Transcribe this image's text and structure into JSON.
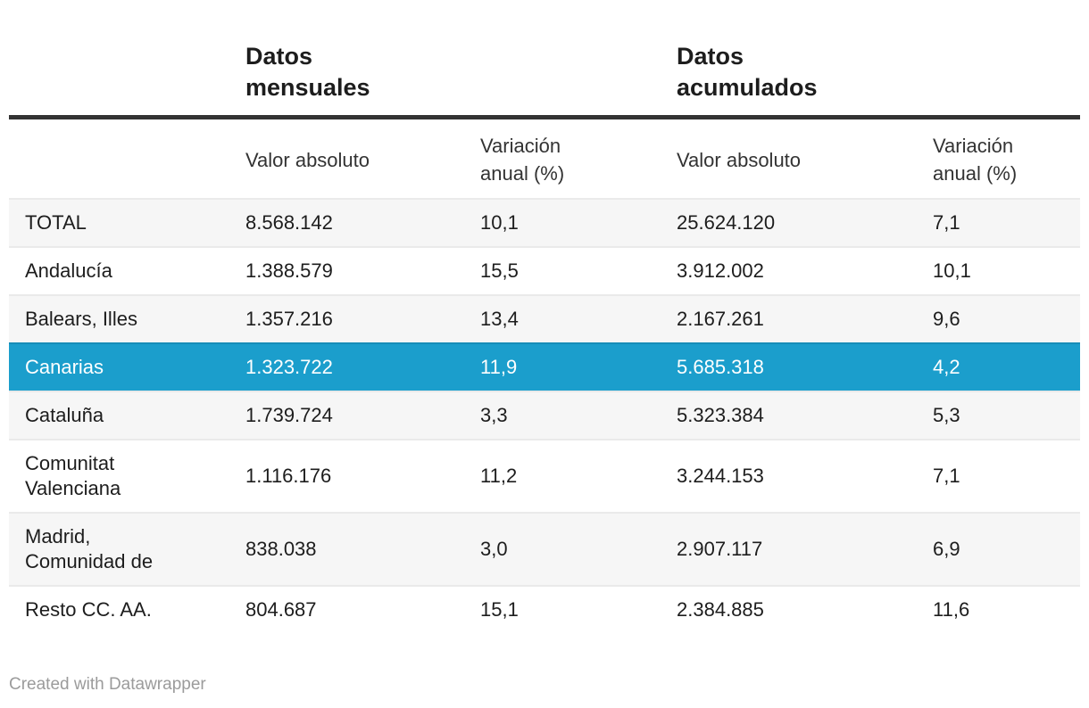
{
  "chart_data": {
    "type": "table",
    "title": "",
    "column_groups": [
      {
        "label": "Datos\nmensuales",
        "span": 2
      },
      {
        "label": "Datos\nacumulados",
        "span": 2
      }
    ],
    "subcolumns": [
      "Valor absoluto",
      "Variación\nanual (%)",
      "Valor absoluto",
      "Variación\nanual (%)"
    ],
    "rows": [
      {
        "name": "TOTAL",
        "monthly_absolute": "8.568.142",
        "monthly_variation": "10,1",
        "accumulated_absolute": "25.624.120",
        "accumulated_variation": "7,1"
      },
      {
        "name": "Andalucía",
        "monthly_absolute": "1.388.579",
        "monthly_variation": "15,5",
        "accumulated_absolute": "3.912.002",
        "accumulated_variation": "10,1"
      },
      {
        "name": "Balears, Illes",
        "monthly_absolute": "1.357.216",
        "monthly_variation": "13,4",
        "accumulated_absolute": "2.167.261",
        "accumulated_variation": "9,6"
      },
      {
        "name": "Canarias",
        "monthly_absolute": "1.323.722",
        "monthly_variation": "11,9",
        "accumulated_absolute": "5.685.318",
        "accumulated_variation": "4,2"
      },
      {
        "name": "Cataluña",
        "monthly_absolute": "1.739.724",
        "monthly_variation": "3,3",
        "accumulated_absolute": "5.323.384",
        "accumulated_variation": "5,3"
      },
      {
        "name": "Comunitat\nValenciana",
        "monthly_absolute": "1.116.176",
        "monthly_variation": "11,2",
        "accumulated_absolute": "3.244.153",
        "accumulated_variation": "7,1"
      },
      {
        "name": "Madrid,\nComunidad de",
        "monthly_absolute": "838.038",
        "monthly_variation": "3,0",
        "accumulated_absolute": "2.907.117",
        "accumulated_variation": "6,9"
      },
      {
        "name": "Resto CC. AA.",
        "monthly_absolute": "804.687",
        "monthly_variation": "15,1",
        "accumulated_absolute": "2.384.885",
        "accumulated_variation": "11,6"
      }
    ],
    "highlighted_row": "Canarias",
    "layout_hints": {
      "zebra_striping": true,
      "header_rule": true
    }
  },
  "colors": {
    "highlight": "#1B9ECC",
    "highlight_divider": "#178DB8",
    "stripe": "#F6F6F6",
    "divider": "#EAEAEA",
    "rule": "#333333",
    "body_text": "#1D1D1D",
    "credit_text": "#9B9B9B"
  },
  "footer": {
    "credit": "Created with Datawrapper"
  }
}
